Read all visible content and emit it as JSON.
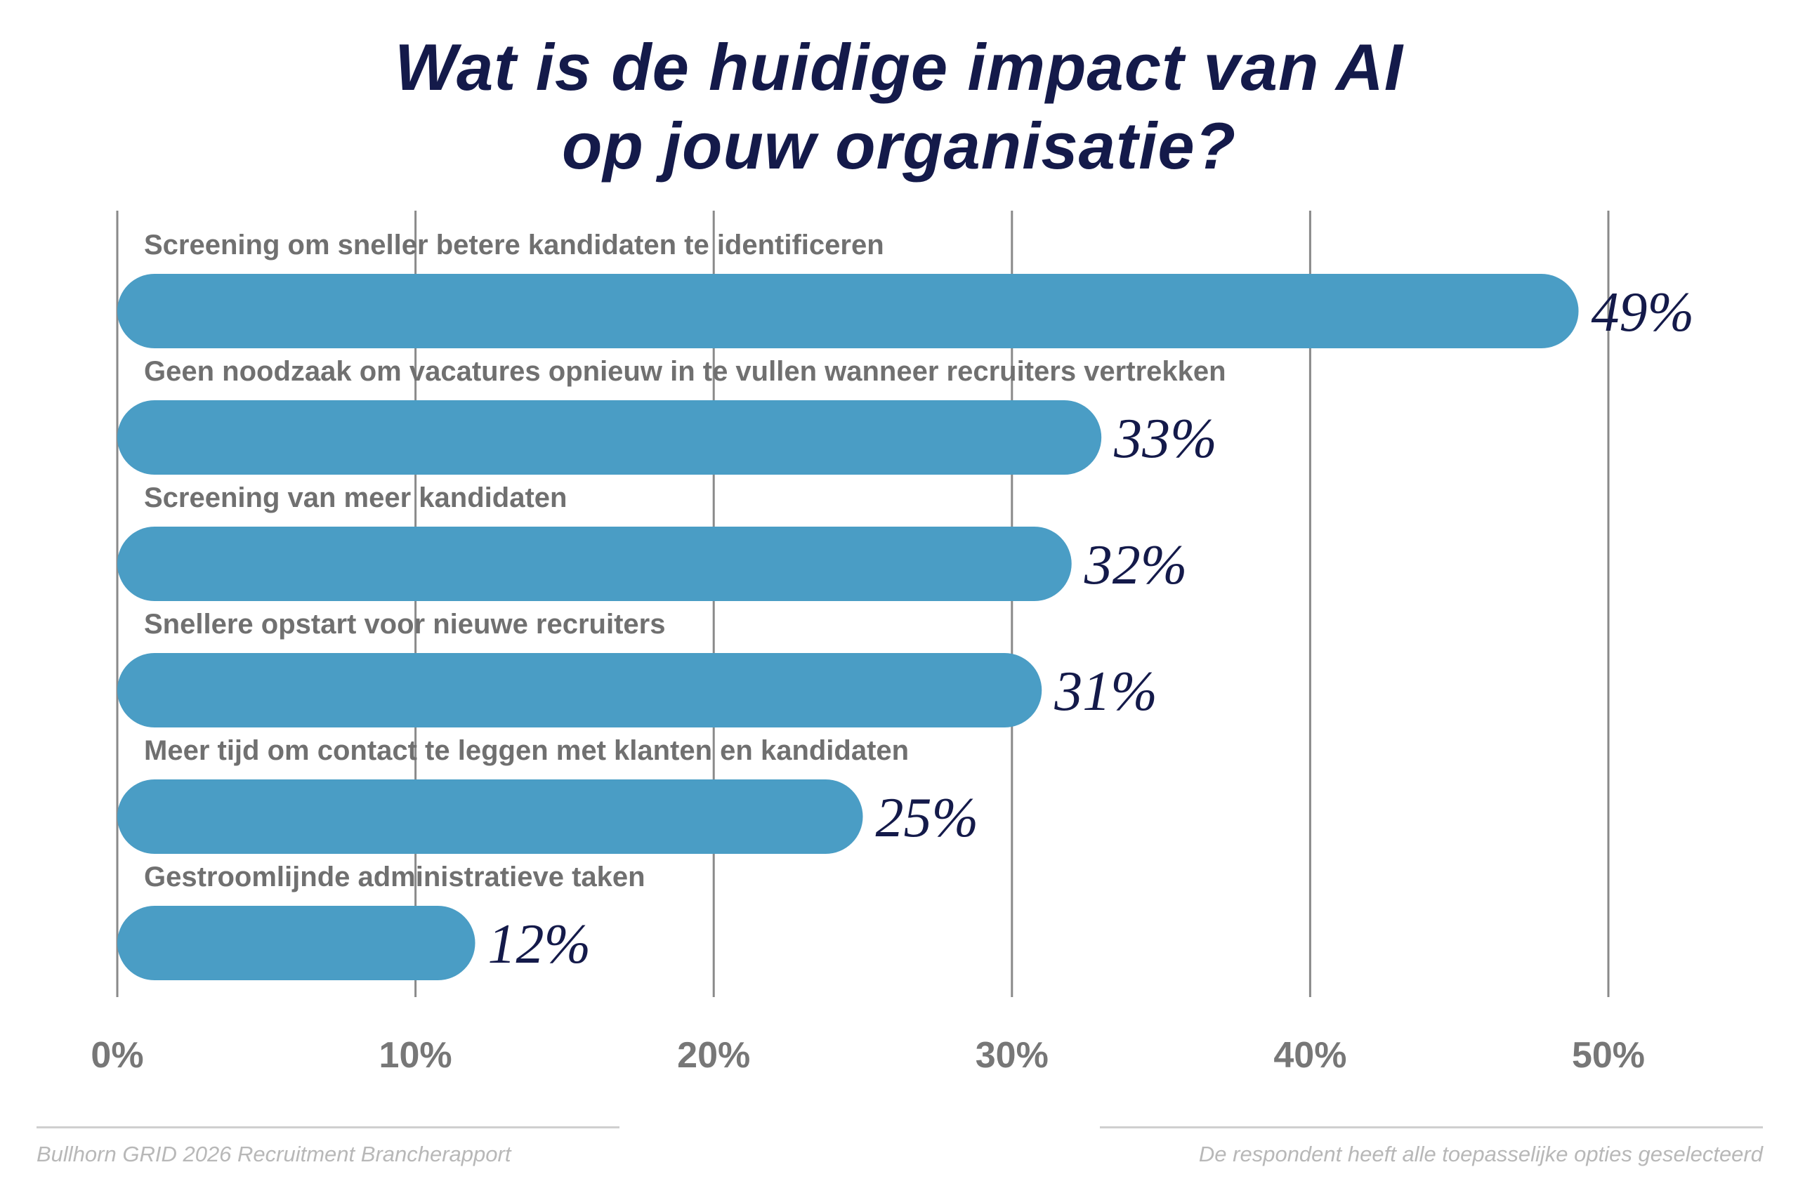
{
  "colors": {
    "title": "#141a4a",
    "bar": "#4a9dc5",
    "category_label": "#707070",
    "value_label": "#141a4a",
    "tick_label": "#777777",
    "gridline": "#8a8a8a"
  },
  "chart_data": {
    "type": "bar",
    "orientation": "horizontal",
    "title_lines": [
      "Wat is de huidige impact van AI",
      "op jouw organisatie?"
    ],
    "categories": [
      "Screening om sneller betere kandidaten te identificeren",
      "Geen noodzaak om vacatures opnieuw in te vullen wanneer recruiters vertrekken",
      "Screening van meer kandidaten",
      "Snellere opstart voor nieuwe recruiters",
      "Meer tijd om contact te leggen met klanten en kandidaten",
      "Gestroomlijnde administratieve taken"
    ],
    "values": [
      49,
      33,
      32,
      31,
      25,
      12
    ],
    "value_labels": [
      "49%",
      "33%",
      "32%",
      "31%",
      "25%",
      "12%"
    ],
    "xlim": [
      0,
      50
    ],
    "x_ticks": [
      0,
      10,
      20,
      30,
      40,
      50
    ],
    "x_tick_labels": [
      "0%",
      "10%",
      "20%",
      "30%",
      "40%",
      "50%"
    ],
    "grid": true,
    "legend": "none"
  },
  "footer": {
    "source": "Bullhorn GRID 2026 Recruitment Brancherapport",
    "note": "De respondent heeft alle toepasselijke opties geselecteerd"
  }
}
